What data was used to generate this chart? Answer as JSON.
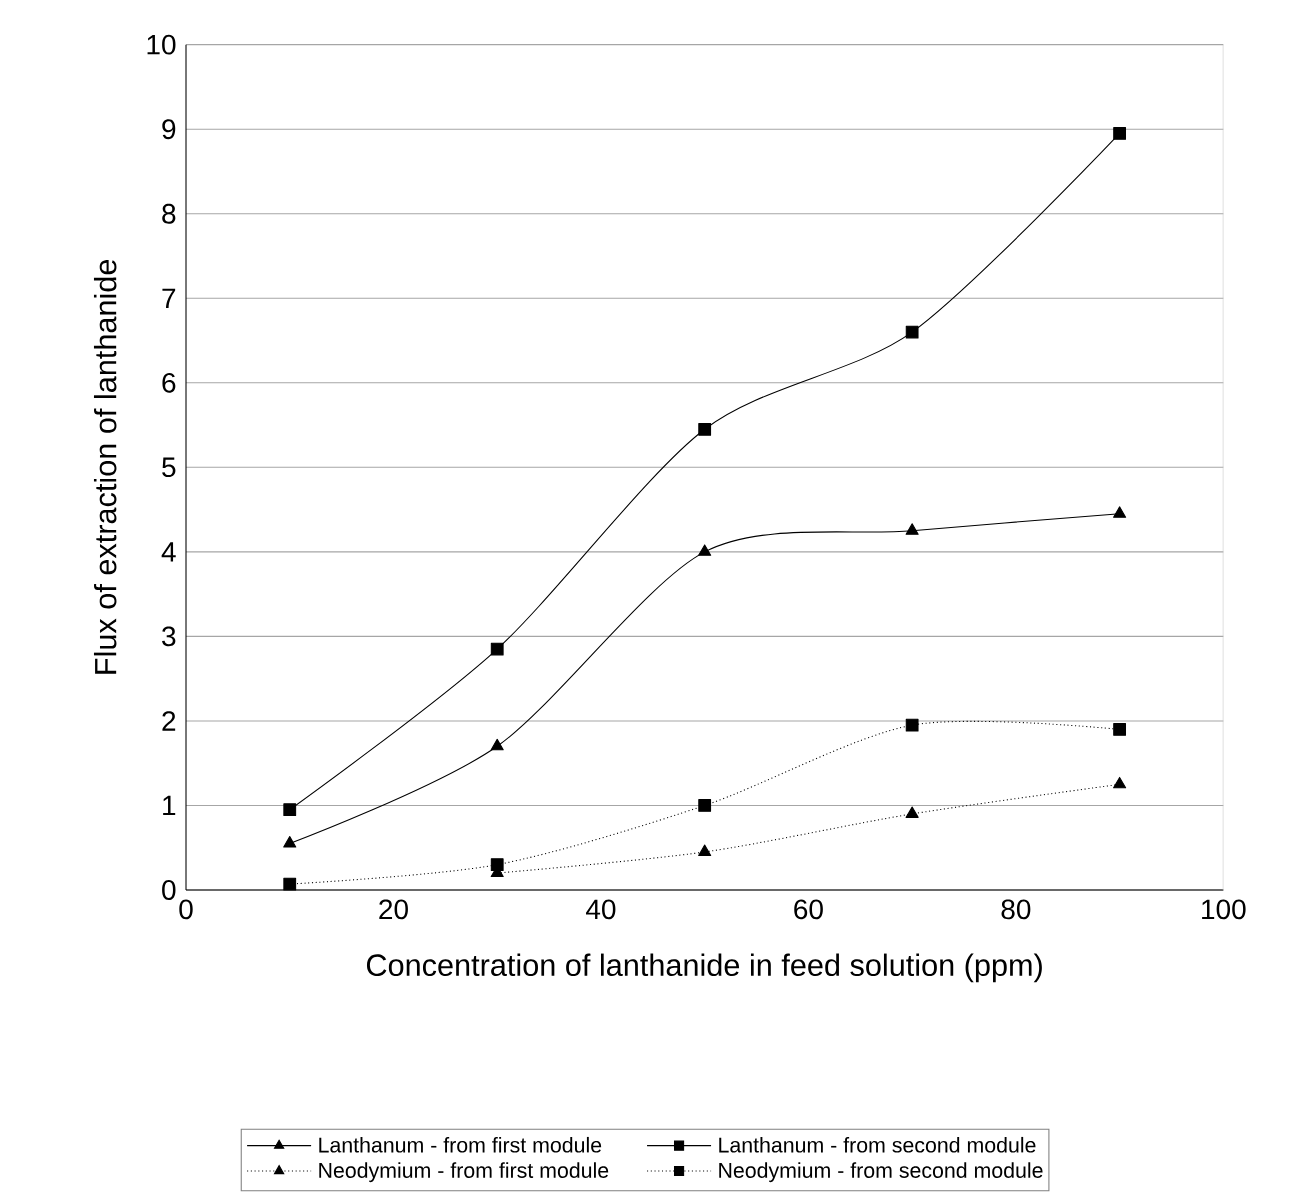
{
  "chart_data": {
    "type": "line",
    "xlabel": "Concentration of lanthanide in feed solution (ppm)",
    "ylabel": "Flux of extraction of lanthanide",
    "x": [
      10,
      30,
      50,
      70,
      90
    ],
    "series": [
      {
        "name": "Lanthanum - from first module",
        "color": "#000000",
        "marker": "triangle",
        "line_style": "solid",
        "values": [
          0.55,
          1.7,
          4.0,
          4.25,
          4.45
        ]
      },
      {
        "name": "Lanthanum - from second module",
        "color": "#000000",
        "marker": "square",
        "line_style": "solid",
        "values": [
          0.95,
          2.85,
          5.45,
          6.6,
          8.95
        ]
      },
      {
        "name": "Neodymium - from first module",
        "color": "#000000",
        "marker": "triangle",
        "line_style": "dotted",
        "values": [
          null,
          0.2,
          0.45,
          0.9,
          1.25
        ]
      },
      {
        "name": "Neodymium - from second module",
        "color": "#000000",
        "marker": "square",
        "line_style": "dotted",
        "values": [
          0.07,
          0.3,
          1.0,
          1.95,
          1.9
        ]
      }
    ],
    "xlim": [
      0,
      100
    ],
    "xticks": [
      0,
      20,
      40,
      60,
      80,
      100
    ],
    "ylim": [
      0,
      10
    ],
    "yticks": [
      0,
      1,
      2,
      3,
      4,
      5,
      6,
      7,
      8,
      9,
      10
    ],
    "grid": "y",
    "legend": "bottom"
  }
}
